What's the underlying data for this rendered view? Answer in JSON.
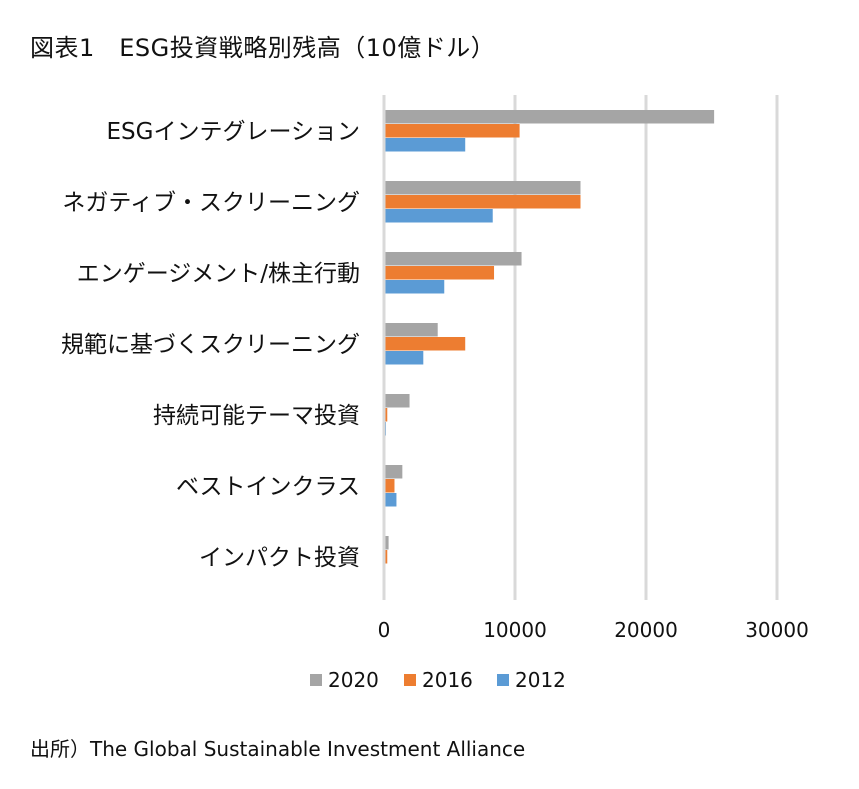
{
  "title": "図表1　ESG投資戦略別残高（10億ドル）",
  "source": "出所）The Global Sustainable Investment Alliance",
  "colors": {
    "2020": "#a5a5a5",
    "2016": "#ed7d31",
    "2012": "#5b9bd5",
    "grid": "#d9d9d9"
  },
  "chart_data": {
    "type": "bar",
    "orientation": "horizontal",
    "title": "図表1　ESG投資戦略別残高（10億ドル）",
    "categories": [
      "ESGインテグレーション",
      "ネガティブ・スクリーニング",
      "エンゲージメント/株主行動",
      "規範に基づくスクリーニング",
      "持続可能テーマ投資",
      "ベストインクラス",
      "インパクト投資"
    ],
    "series": [
      {
        "name": "2020",
        "values": [
          25200,
          15000,
          10500,
          4100,
          1950,
          1400,
          350
        ]
      },
      {
        "name": "2016",
        "values": [
          10350,
          15000,
          8400,
          6200,
          250,
          800,
          250
        ]
      },
      {
        "name": "2012",
        "values": [
          6200,
          8300,
          4600,
          3000,
          150,
          950,
          100
        ]
      }
    ],
    "xlim": [
      0,
      30000
    ],
    "xticks": [
      0,
      10000,
      20000,
      30000
    ],
    "grid": true,
    "legend_position": "bottom"
  }
}
